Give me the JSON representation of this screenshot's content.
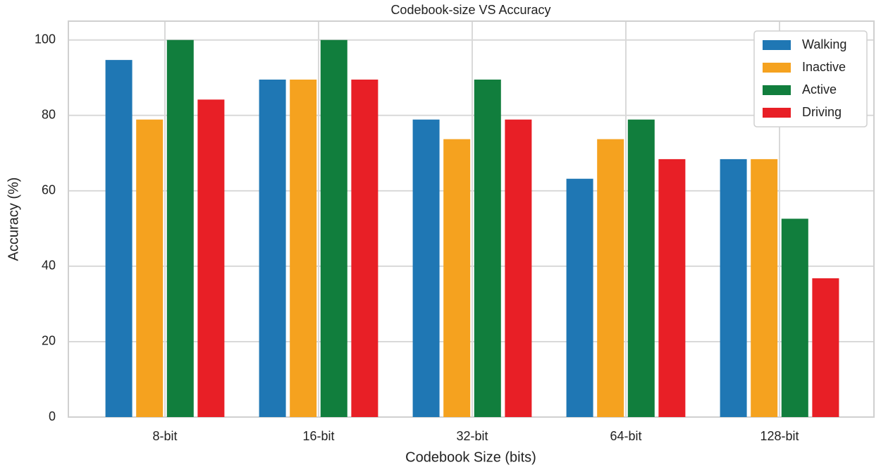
{
  "chart_data": {
    "type": "bar",
    "title": "Codebook-size VS Accuracy",
    "x_label": "Codebook Size (bits)",
    "y_label": "Accuracy (%)",
    "categories": [
      "8-bit",
      "16-bit",
      "32-bit",
      "64-bit",
      "128-bit"
    ],
    "series": [
      {
        "name": "Walking",
        "color": "#1f77b4",
        "values": [
          94.7,
          89.5,
          78.9,
          63.2,
          68.4
        ]
      },
      {
        "name": "Inactive",
        "color": "#f5a21f",
        "values": [
          78.9,
          89.5,
          73.7,
          73.7,
          68.4
        ]
      },
      {
        "name": "Active",
        "color": "#117e3d",
        "values": [
          100,
          100,
          89.5,
          78.9,
          52.6
        ]
      },
      {
        "name": "Driving",
        "color": "#e81f26",
        "values": [
          84.2,
          89.5,
          78.9,
          68.4,
          36.8
        ]
      }
    ],
    "ylim": [
      0,
      105
    ],
    "yticks": [
      0,
      20,
      40,
      60,
      80,
      100
    ],
    "grid": true,
    "legend": "upper right"
  }
}
